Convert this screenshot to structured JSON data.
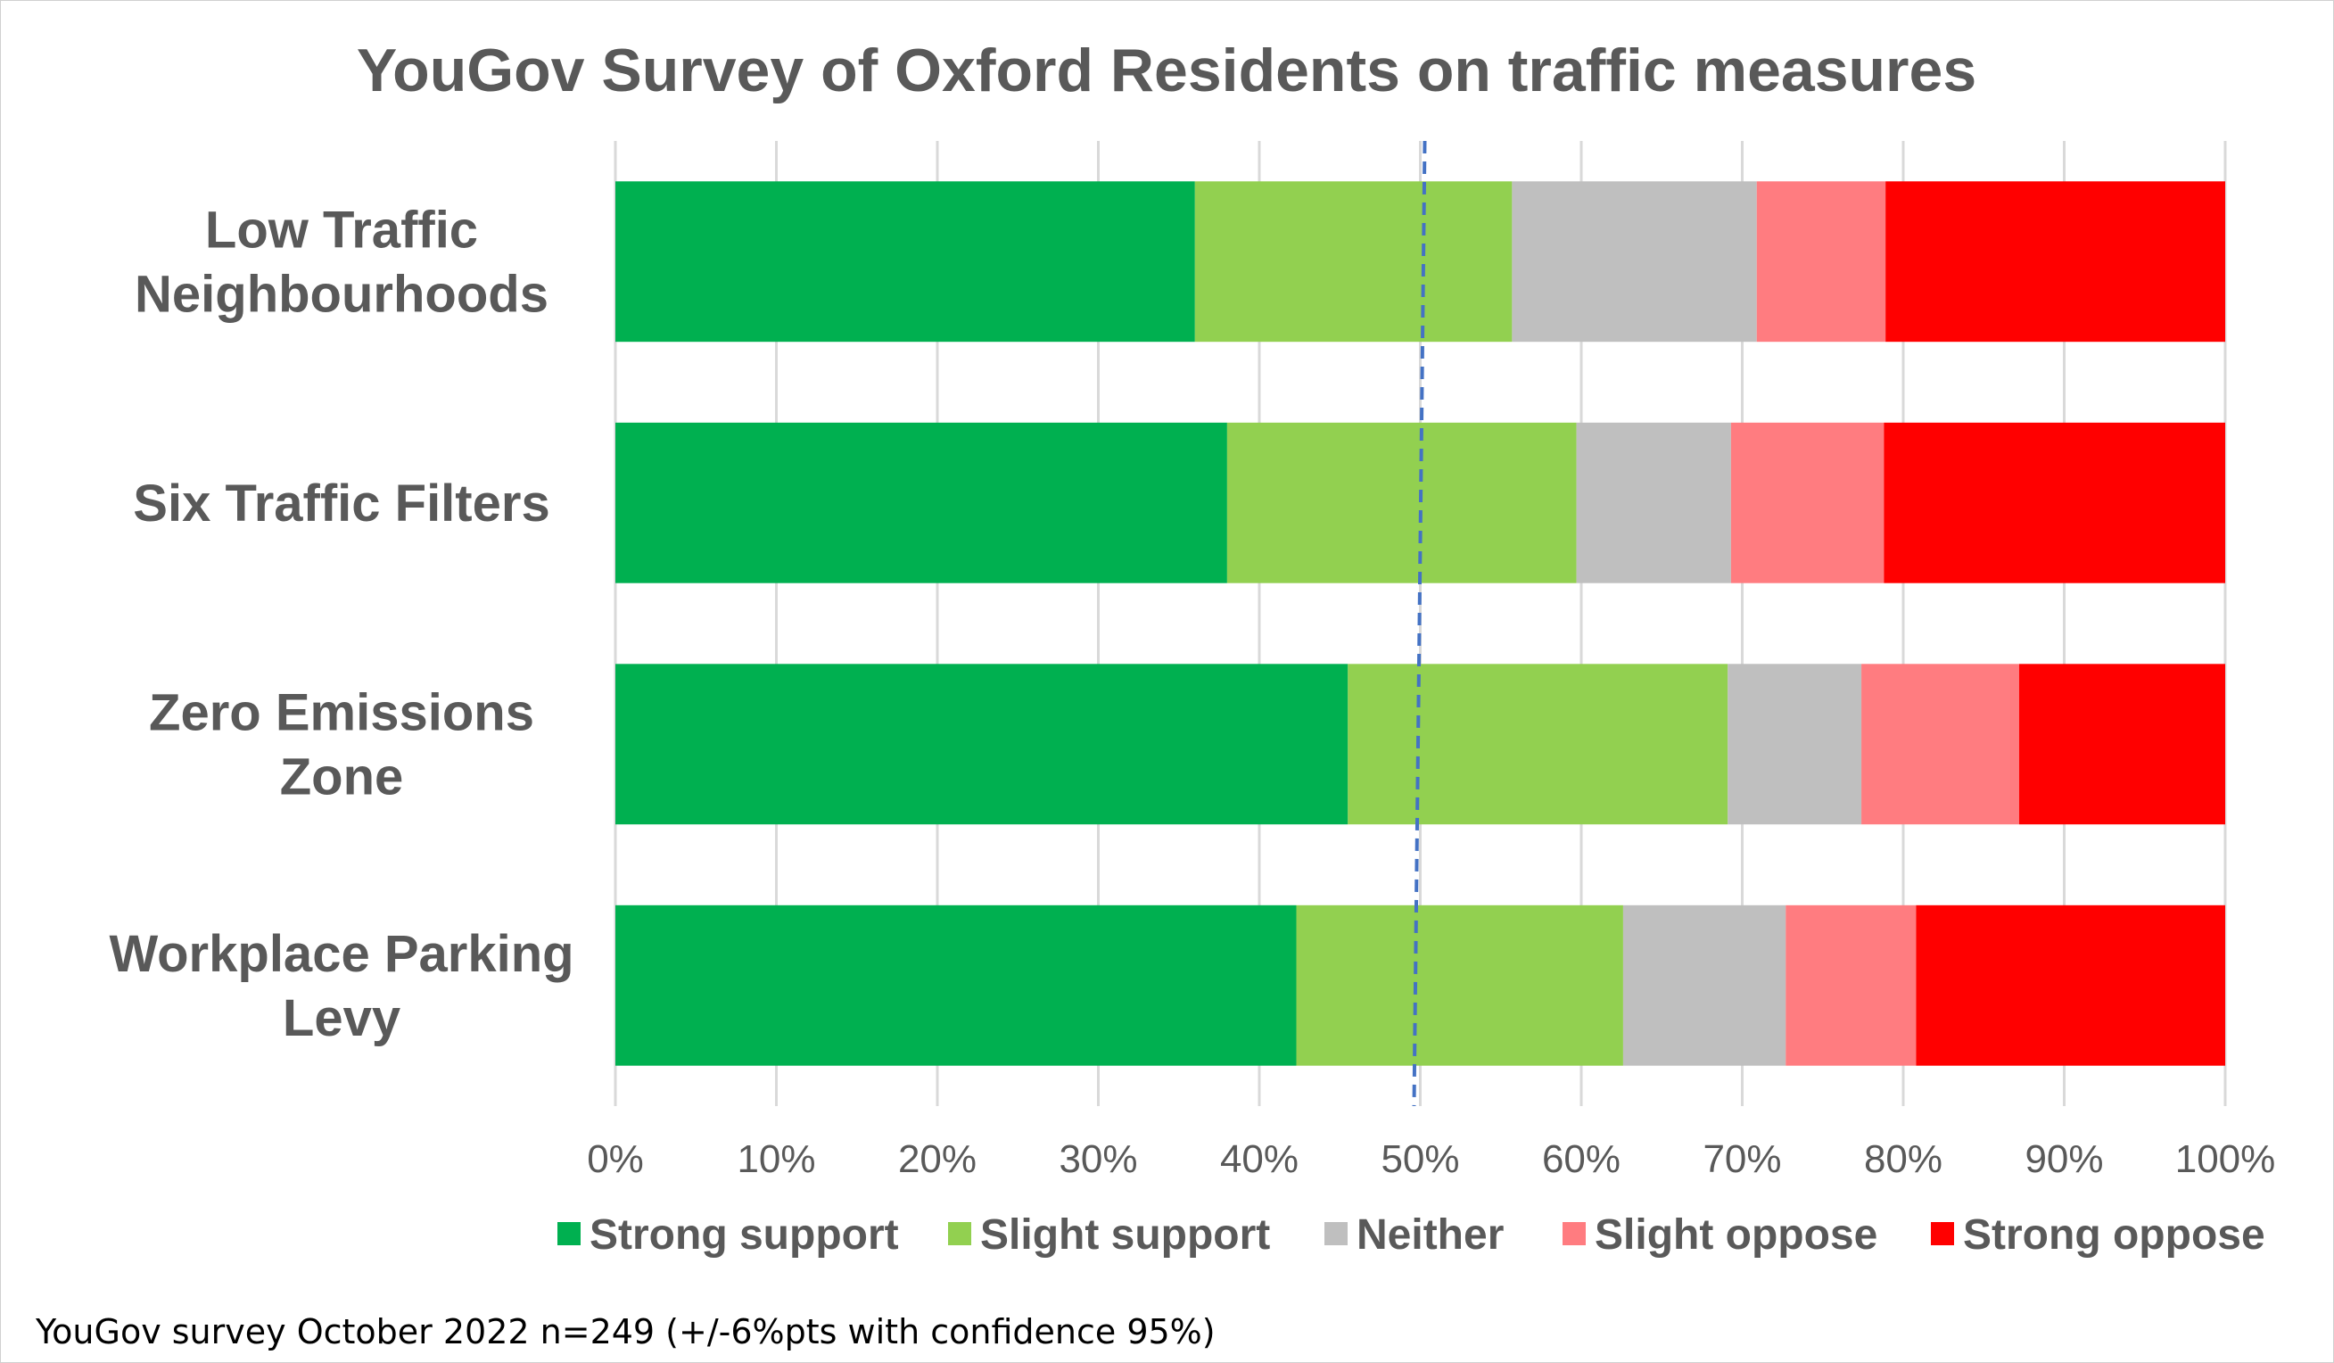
{
  "chart_data": {
    "type": "bar",
    "orientation": "horizontal",
    "stacked": "percent",
    "title": "YouGov Survey of Oxford Residents on traffic measures",
    "categories": [
      [
        "Low Traffic",
        "Neighbourhoods"
      ],
      [
        "Six Traffic Filters"
      ],
      [
        "Zero Emissions",
        "Zone"
      ],
      [
        "Workplace Parking",
        "Levy"
      ]
    ],
    "series": [
      {
        "name": "Strong support",
        "color": "#00b050",
        "values": [
          36,
          38,
          45.5,
          42.3
        ]
      },
      {
        "name": "Slight support",
        "color": "#92d050",
        "values": [
          19.7,
          21.7,
          23.6,
          20.3
        ]
      },
      {
        "name": "Neither",
        "color": "#bfbfbf",
        "values": [
          15.2,
          9.6,
          8.3,
          10.1
        ]
      },
      {
        "name": "Slight oppose",
        "color": "#ff7c80",
        "values": [
          8,
          9.5,
          9.8,
          8.1
        ]
      },
      {
        "name": "Strong oppose",
        "color": "#ff0000",
        "values": [
          21.1,
          21.2,
          12.8,
          19.2
        ]
      }
    ],
    "xlim": [
      0,
      100
    ],
    "x_ticks": [
      "0%",
      "10%",
      "20%",
      "30%",
      "40%",
      "50%",
      "60%",
      "70%",
      "80%",
      "90%",
      "100%"
    ],
    "reference_line": {
      "value": 50,
      "style": "dashed",
      "color": "#4472c4"
    },
    "grid": true,
    "legend": "bottom",
    "footnote": "YouGov survey October 2022 n=249 (+/-6%pts with confidence 95%)"
  }
}
